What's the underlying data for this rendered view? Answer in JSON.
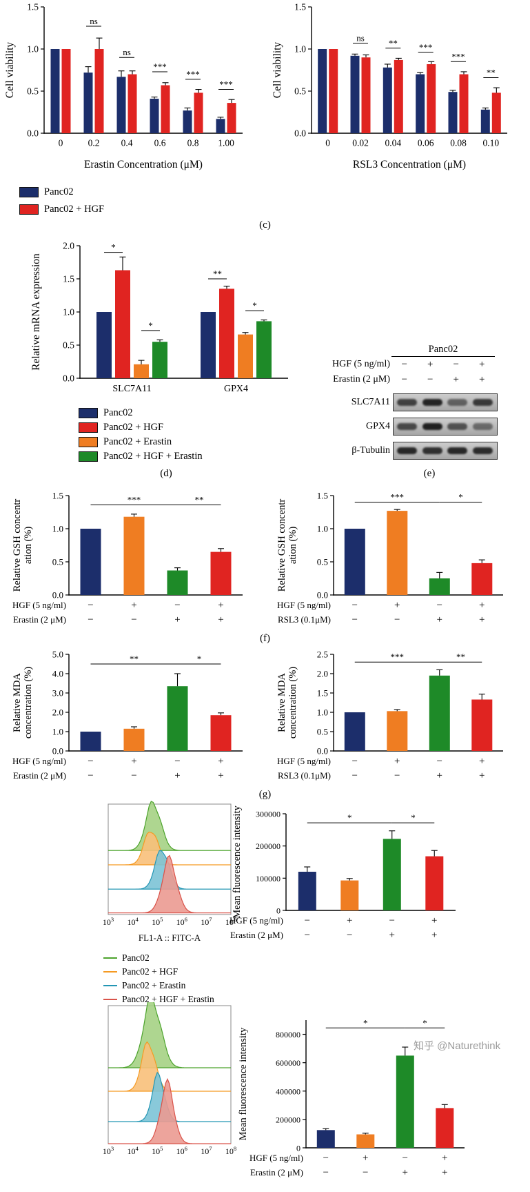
{
  "labels": {
    "c": "(c)",
    "d": "(d)",
    "e": "(e)",
    "f": "(f)",
    "g": "(g)"
  },
  "watermark": "知乎 @Naturethink",
  "palette": {
    "navy": "#1c2e6b",
    "red": "#e02421",
    "orange": "#ef7d22",
    "green": "#1e8a28",
    "flow_green": "#4ca32c",
    "flow_orange": "#f59a23",
    "flow_teal": "#2396b4",
    "flow_red": "#d9534a"
  },
  "legend_top": {
    "items": [
      {
        "label": "Panc02",
        "color": "#1c2e6b"
      },
      {
        "label": "Panc02 + HGF",
        "color": "#e02421"
      }
    ]
  },
  "legend_mrna": {
    "items": [
      {
        "label": "Panc02",
        "color": "#1c2e6b"
      },
      {
        "label": "Panc02 + HGF",
        "color": "#e02421"
      },
      {
        "label": "Panc02 + Erastin",
        "color": "#ef7d22"
      },
      {
        "label": "Panc02 + HGF + Erastin",
        "color": "#1e8a28"
      }
    ]
  },
  "legend_flow": {
    "items": [
      {
        "label": "Panc02",
        "color": "#4ca32c"
      },
      {
        "label": "Panc02 + HGF",
        "color": "#f59a23"
      },
      {
        "label": "Panc02 + Erastin",
        "color": "#2396b4"
      },
      {
        "label": "Panc02 + HGF + Erastin",
        "color": "#d9534a"
      }
    ]
  },
  "western": {
    "cell_line": "Panc02",
    "rows": [
      {
        "label": "HGF (5 ng/ml)",
        "symbols": [
          "−",
          "+",
          "−",
          "+"
        ]
      },
      {
        "label": "Erastin (2 μM)",
        "symbols": [
          "−",
          "−",
          "+",
          "+"
        ]
      }
    ],
    "bands": [
      "SLC7A11",
      "GPX4",
      "β-Tubulin"
    ]
  },
  "chart_data": [
    {
      "id": "viability-erastin",
      "type": "bar",
      "ylabel": "Cell viability",
      "xlabel": "Erastin Concentration (μM)",
      "ylim": [
        0,
        1.5
      ],
      "yticks": [
        "0.0",
        "0.5",
        "1.0",
        "1.5"
      ],
      "categories": [
        "0",
        "0.2",
        "0.4",
        "0.6",
        "0.8",
        "1.00"
      ],
      "series": [
        {
          "name": "Panc02",
          "color": "#1c2e6b",
          "values": [
            1.0,
            0.72,
            0.67,
            0.41,
            0.27,
            0.17
          ],
          "errors": [
            0,
            0.07,
            0.07,
            0.02,
            0.03,
            0.02
          ]
        },
        {
          "name": "Panc02 + HGF",
          "color": "#e02421",
          "values": [
            1.0,
            1.0,
            0.7,
            0.57,
            0.48,
            0.36
          ],
          "errors": [
            0,
            0.13,
            0.04,
            0.03,
            0.04,
            0.04
          ]
        }
      ],
      "annotations": [
        {
          "type": "group",
          "cat": 1,
          "label": "ns",
          "y": 1.27
        },
        {
          "type": "group",
          "cat": 2,
          "label": "ns",
          "y": 0.9
        },
        {
          "type": "group",
          "cat": 3,
          "label": "***",
          "y": 0.73
        },
        {
          "type": "group",
          "cat": 4,
          "label": "***",
          "y": 0.64
        },
        {
          "type": "group",
          "cat": 5,
          "label": "***",
          "y": 0.52
        }
      ]
    },
    {
      "id": "viability-rsl3",
      "type": "bar",
      "ylabel": "Cell viability",
      "xlabel": "RSL3 Concentration (μM)",
      "ylim": [
        0,
        1.5
      ],
      "yticks": [
        "0.0",
        "0.5",
        "1.0",
        "1.5"
      ],
      "categories": [
        "0",
        "0.02",
        "0.04",
        "0.06",
        "0.08",
        "0.10"
      ],
      "series": [
        {
          "name": "Panc02",
          "color": "#1c2e6b",
          "values": [
            1.0,
            0.92,
            0.78,
            0.7,
            0.49,
            0.28
          ],
          "errors": [
            0,
            0.02,
            0.04,
            0.02,
            0.02,
            0.02
          ]
        },
        {
          "name": "Panc02 + HGF",
          "color": "#e02421",
          "values": [
            1.0,
            0.9,
            0.87,
            0.82,
            0.7,
            0.48
          ],
          "errors": [
            0,
            0.03,
            0.02,
            0.03,
            0.03,
            0.06
          ]
        }
      ],
      "annotations": [
        {
          "type": "group",
          "cat": 1,
          "label": "ns",
          "y": 1.07
        },
        {
          "type": "group",
          "cat": 2,
          "label": "**",
          "y": 1.01
        },
        {
          "type": "group",
          "cat": 3,
          "label": "***",
          "y": 0.96
        },
        {
          "type": "group",
          "cat": 4,
          "label": "***",
          "y": 0.85
        },
        {
          "type": "group",
          "cat": 5,
          "label": "**",
          "y": 0.66
        }
      ]
    },
    {
      "id": "mrna",
      "type": "bar",
      "ylabel": "Relative mRNA expression",
      "ylim": [
        0,
        2.0
      ],
      "yticks": [
        "0.0",
        "0.5",
        "1.0",
        "1.5",
        "2.0"
      ],
      "categories": [
        "SLC7A11",
        "GPX4"
      ],
      "series": [
        {
          "name": "Panc02",
          "color": "#1c2e6b",
          "values": [
            1.0,
            1.0
          ],
          "errors": [
            0,
            0
          ]
        },
        {
          "name": "Panc02 + HGF",
          "color": "#e02421",
          "values": [
            1.63,
            1.35
          ],
          "errors": [
            0.2,
            0.04
          ]
        },
        {
          "name": "Panc02 + Erastin",
          "color": "#ef7d22",
          "values": [
            0.21,
            0.66
          ],
          "errors": [
            0.06,
            0.03
          ]
        },
        {
          "name": "Panc02 + HGF + Erastin",
          "color": "#1e8a28",
          "values": [
            0.55,
            0.86
          ],
          "errors": [
            0.03,
            0.02
          ]
        }
      ],
      "annotations": [
        {
          "type": "span_series",
          "cat": 0,
          "a": 0,
          "b": 1,
          "label": "*",
          "y": 1.9
        },
        {
          "type": "span_series",
          "cat": 0,
          "a": 2,
          "b": 3,
          "label": "*",
          "y": 0.72
        },
        {
          "type": "span_series",
          "cat": 1,
          "a": 0,
          "b": 1,
          "label": "**",
          "y": 1.5
        },
        {
          "type": "span_series",
          "cat": 1,
          "a": 2,
          "b": 3,
          "label": "*",
          "y": 1.02
        }
      ]
    },
    {
      "id": "gsh-erastin",
      "type": "bar",
      "ylabel_lines": [
        "Relative GSH concentr",
        "ation (%)"
      ],
      "ylim": [
        0,
        1.5
      ],
      "yticks": [
        "0.0",
        "0.5",
        "1.0",
        "1.5"
      ],
      "bars": [
        {
          "value": 1.0,
          "error": 0,
          "color": "#1c2e6b"
        },
        {
          "value": 1.18,
          "error": 0.04,
          "color": "#ef7d22"
        },
        {
          "value": 0.37,
          "error": 0.04,
          "color": "#1e8a28"
        },
        {
          "value": 0.65,
          "error": 0.05,
          "color": "#e02421"
        }
      ],
      "annotations": [
        {
          "type": "span_cat",
          "a": 0,
          "b": 2,
          "label": "***",
          "y": 1.36
        },
        {
          "type": "span_cat",
          "a": 2,
          "b": 3,
          "label": "**",
          "y": 1.36
        }
      ],
      "cond_rows": [
        {
          "label": "HGF (5 ng/ml)",
          "symbols": [
            "−",
            "+",
            "−",
            "+"
          ]
        },
        {
          "label": "Erastin (2 μM)",
          "symbols": [
            "−",
            "−",
            "+",
            "+"
          ]
        }
      ]
    },
    {
      "id": "gsh-rsl3",
      "type": "bar",
      "ylabel_lines": [
        "Relative GSH concentr",
        "ation (%)"
      ],
      "ylim": [
        0,
        1.5
      ],
      "yticks": [
        "0.0",
        "0.5",
        "1.0",
        "1.5"
      ],
      "bars": [
        {
          "value": 1.0,
          "error": 0,
          "color": "#1c2e6b"
        },
        {
          "value": 1.27,
          "error": 0.02,
          "color": "#ef7d22"
        },
        {
          "value": 0.25,
          "error": 0.09,
          "color": "#1e8a28"
        },
        {
          "value": 0.48,
          "error": 0.05,
          "color": "#e02421"
        }
      ],
      "annotations": [
        {
          "type": "span_cat",
          "a": 0,
          "b": 2,
          "label": "***",
          "y": 1.4
        },
        {
          "type": "span_cat",
          "a": 2,
          "b": 3,
          "label": "*",
          "y": 1.4
        }
      ],
      "cond_rows": [
        {
          "label": "HGF (5 ng/ml)",
          "symbols": [
            "−",
            "+",
            "−",
            "+"
          ]
        },
        {
          "label": "RSL3 (0.1μM)",
          "symbols": [
            "−",
            "−",
            "+",
            "+"
          ]
        }
      ]
    },
    {
      "id": "mda-erastin",
      "type": "bar",
      "ylabel_lines": [
        "Relative MDA",
        "concentration (%)"
      ],
      "ylim": [
        0,
        5.0
      ],
      "yticks": [
        "0.0",
        "1.0",
        "2.0",
        "3.0",
        "4.0",
        "5.0"
      ],
      "bars": [
        {
          "value": 1.0,
          "error": 0,
          "color": "#1c2e6b"
        },
        {
          "value": 1.15,
          "error": 0.1,
          "color": "#ef7d22"
        },
        {
          "value": 3.35,
          "error": 0.65,
          "color": "#1e8a28"
        },
        {
          "value": 1.85,
          "error": 0.12,
          "color": "#e02421"
        }
      ],
      "annotations": [
        {
          "type": "span_cat",
          "a": 0,
          "b": 2,
          "label": "**",
          "y": 4.5
        },
        {
          "type": "span_cat",
          "a": 2,
          "b": 3,
          "label": "*",
          "y": 4.5
        }
      ],
      "cond_rows": [
        {
          "label": "HGF (5 ng/ml)",
          "symbols": [
            "−",
            "+",
            "−",
            "+"
          ]
        },
        {
          "label": "Erastin (2 μM)",
          "symbols": [
            "−",
            "−",
            "+",
            "+"
          ]
        }
      ]
    },
    {
      "id": "mda-rsl3",
      "type": "bar",
      "ylabel_lines": [
        "Relative MDA",
        "concentration (%)"
      ],
      "ylim": [
        0,
        2.5
      ],
      "yticks": [
        "0.0",
        "0.5",
        "1.0",
        "1.5",
        "2.0",
        "2.5"
      ],
      "bars": [
        {
          "value": 1.0,
          "error": 0,
          "color": "#1c2e6b"
        },
        {
          "value": 1.03,
          "error": 0.04,
          "color": "#ef7d22"
        },
        {
          "value": 1.95,
          "error": 0.15,
          "color": "#1e8a28"
        },
        {
          "value": 1.33,
          "error": 0.14,
          "color": "#e02421"
        }
      ],
      "annotations": [
        {
          "type": "span_cat",
          "a": 0,
          "b": 2,
          "label": "***",
          "y": 2.3
        },
        {
          "type": "span_cat",
          "a": 2,
          "b": 3,
          "label": "**",
          "y": 2.3
        }
      ],
      "cond_rows": [
        {
          "label": "HGF (5 ng/ml)",
          "symbols": [
            "−",
            "+",
            "−",
            "+"
          ]
        },
        {
          "label": "RSL3 (0.1μM)",
          "symbols": [
            "−",
            "−",
            "+",
            "+"
          ]
        }
      ]
    },
    {
      "id": "mfi-fitc",
      "type": "bar",
      "ylabel": "Mean fluorescence intensity",
      "ylim": [
        0,
        300000
      ],
      "yticks": [
        "0",
        "100000",
        "200000",
        "300000"
      ],
      "bars": [
        {
          "value": 120000,
          "error": 15000,
          "color": "#1c2e6b"
        },
        {
          "value": 93000,
          "error": 6000,
          "color": "#ef7d22"
        },
        {
          "value": 222000,
          "error": 25000,
          "color": "#1e8a28"
        },
        {
          "value": 168000,
          "error": 18000,
          "color": "#e02421"
        }
      ],
      "annotations": [
        {
          "type": "span_cat",
          "a": 0,
          "b": 2,
          "label": "*",
          "y": 272000
        },
        {
          "type": "span_cat",
          "a": 2,
          "b": 3,
          "label": "*",
          "y": 272000
        }
      ],
      "cond_rows": [
        {
          "label": "HGF (5 ng/ml)",
          "symbols": [
            "−",
            "+",
            "−",
            "+"
          ]
        },
        {
          "label": "Erastin (2 μM)",
          "symbols": [
            "−",
            "−",
            "+",
            "+"
          ]
        }
      ]
    },
    {
      "id": "mfi-2",
      "type": "bar",
      "ylabel": "Mean fluorescence intensity",
      "ylim": [
        0,
        900000
      ],
      "yticks": [
        "0",
        "200000",
        "400000",
        "600000",
        "800000"
      ],
      "bars": [
        {
          "value": 125000,
          "error": 10000,
          "color": "#1c2e6b"
        },
        {
          "value": 95000,
          "error": 8000,
          "color": "#ef7d22"
        },
        {
          "value": 650000,
          "error": 60000,
          "color": "#1e8a28"
        },
        {
          "value": 280000,
          "error": 25000,
          "color": "#e02421"
        }
      ],
      "annotations": [
        {
          "type": "span_cat",
          "a": 0,
          "b": 2,
          "label": "*",
          "y": 845000
        },
        {
          "type": "span_cat",
          "a": 2,
          "b": 3,
          "label": "*",
          "y": 845000
        }
      ],
      "cond_rows": [
        {
          "label": "HGF (5 ng/ml)",
          "symbols": [
            "−",
            "+",
            "−",
            "+"
          ]
        },
        {
          "label": "Erastin (2 μM)",
          "symbols": [
            "−",
            "−",
            "+",
            "+"
          ]
        }
      ]
    },
    {
      "id": "flow-fitc",
      "type": "histogram",
      "xlabel": "FL1-A :: FITC-A",
      "x_exponents": [
        "3",
        "4",
        "5",
        "6",
        "7",
        "8"
      ],
      "curves": [
        {
          "name": "Panc02",
          "color": "#4ca32c",
          "fill": "#a5d284",
          "cx": 0.37,
          "sd": 0.06,
          "h": 0.44,
          "base": 0.42
        },
        {
          "name": "Panc02 + HGF",
          "color": "#f59a23",
          "fill": "#f8c07a",
          "cx": 0.35,
          "sd": 0.055,
          "h": 0.33,
          "base": 0.55
        },
        {
          "name": "Panc02 + Erastin",
          "color": "#2396b4",
          "fill": "#7cc3d6",
          "cx": 0.44,
          "sd": 0.055,
          "h": 0.37,
          "base": 0.77
        },
        {
          "name": "Panc02 + HGF + Erastin",
          "color": "#d9534a",
          "fill": "#eb9a91",
          "cx": 0.5,
          "sd": 0.06,
          "h": 0.47,
          "base": 0.985
        }
      ]
    },
    {
      "id": "flow-2",
      "type": "histogram",
      "x_exponents": [
        "3",
        "4",
        "5",
        "6",
        "7",
        "8"
      ],
      "curves": [
        {
          "name": "Panc02",
          "color": "#4ca32c",
          "fill": "#a5d284",
          "cx": 0.36,
          "sd": 0.07,
          "h": 0.5,
          "base": 0.45
        },
        {
          "name": "Panc02 + HGF",
          "color": "#f59a23",
          "fill": "#f8c07a",
          "cx": 0.33,
          "sd": 0.055,
          "h": 0.36,
          "base": 0.62
        },
        {
          "name": "Panc02 + Erastin",
          "color": "#2396b4",
          "fill": "#7cc3d6",
          "cx": 0.41,
          "sd": 0.05,
          "h": 0.33,
          "base": 0.84
        },
        {
          "name": "Panc02 + HGF + Erastin",
          "color": "#d9534a",
          "fill": "#eb9a91",
          "cx": 0.48,
          "sd": 0.055,
          "h": 0.42,
          "base": 1.0
        }
      ]
    }
  ]
}
